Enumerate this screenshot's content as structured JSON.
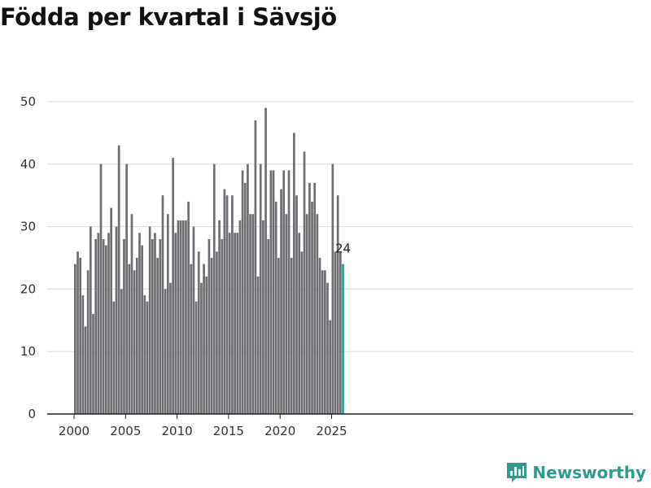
{
  "title": "Födda per kvartal i Sävsjö",
  "brand": {
    "name": "Newsworthy",
    "logo_icon": "newsworthy-logo-icon",
    "color": "#2a9d8f"
  },
  "chart_data": {
    "type": "bar",
    "title": "Födda per kvartal i Sävsjö",
    "xlabel": "",
    "ylabel": "",
    "ylim": [
      0,
      50
    ],
    "yticks": [
      0,
      10,
      20,
      30,
      40,
      50
    ],
    "xticks": [
      "2000",
      "2005",
      "2010",
      "2015",
      "2020",
      "2025"
    ],
    "grid": true,
    "bar_color": "#6f6f73",
    "highlight_color": "#2a9d8f",
    "highlight_label": "24",
    "start_year": 2000,
    "values": [
      24,
      26,
      25,
      19,
      14,
      23,
      30,
      16,
      28,
      29,
      40,
      28,
      27,
      29,
      33,
      18,
      30,
      43,
      20,
      28,
      40,
      24,
      32,
      23,
      25,
      29,
      27,
      19,
      18,
      30,
      28,
      29,
      25,
      28,
      35,
      20,
      32,
      21,
      41,
      29,
      31,
      31,
      31,
      31,
      34,
      24,
      30,
      18,
      26,
      21,
      24,
      22,
      28,
      25,
      40,
      26,
      31,
      28,
      36,
      35,
      29,
      35,
      29,
      29,
      31,
      39,
      37,
      40,
      32,
      32,
      47,
      22,
      40,
      31,
      49,
      28,
      39,
      39,
      34,
      25,
      36,
      39,
      32,
      39,
      25,
      45,
      35,
      29,
      26,
      42,
      32,
      37,
      34,
      37,
      32,
      25,
      23,
      23,
      21,
      15,
      40,
      26,
      35,
      26,
      24
    ]
  }
}
